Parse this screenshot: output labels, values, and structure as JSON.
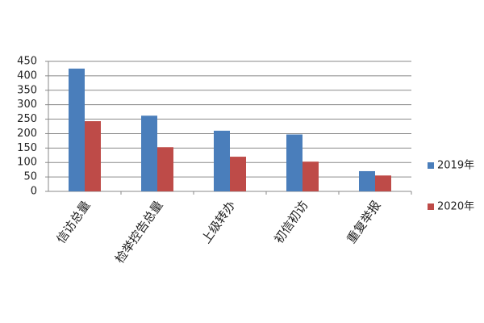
{
  "chart_data": {
    "type": "bar",
    "categories": [
      "信访总量",
      "检举控告总量",
      "上级转办",
      "初信初访",
      "重复举报"
    ],
    "series": [
      {
        "name": "2019年",
        "color": "#4a7ebb",
        "values": [
          425,
          262,
          210,
          197,
          70
        ]
      },
      {
        "name": "2020年",
        "color": "#be4b48",
        "values": [
          243,
          153,
          120,
          103,
          55
        ]
      }
    ],
    "ylim": [
      0,
      450
    ],
    "yticks": [
      0,
      50,
      100,
      150,
      200,
      250,
      300,
      350,
      400,
      450
    ],
    "grid": true
  }
}
